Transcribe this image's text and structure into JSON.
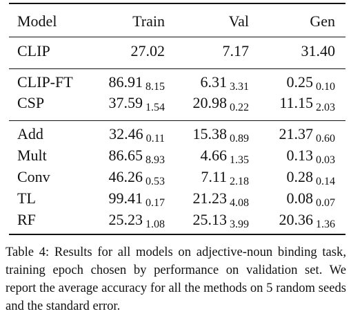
{
  "table": {
    "columns": [
      "Model",
      "Train",
      "Val",
      "Gen"
    ],
    "groups": [
      {
        "rows": [
          {
            "model": "CLIP",
            "train": "27.02",
            "train_se": "",
            "val": "7.17",
            "val_se": "",
            "gen": "31.40",
            "gen_se": ""
          }
        ]
      },
      {
        "rows": [
          {
            "model": "CLIP-FT",
            "train": "86.91",
            "train_se": "8.15",
            "val": "6.31",
            "val_se": "3.31",
            "gen": "0.25",
            "gen_se": "0.10"
          },
          {
            "model": "CSP",
            "train": "37.59",
            "train_se": "1.54",
            "val": "20.98",
            "val_se": "0.22",
            "gen": "11.15",
            "gen_se": "2.03"
          }
        ]
      },
      {
        "rows": [
          {
            "model": "Add",
            "train": "32.46",
            "train_se": "0.11",
            "val": "15.38",
            "val_se": "0.89",
            "gen": "21.37",
            "gen_se": "0.60"
          },
          {
            "model": "Mult",
            "train": "86.65",
            "train_se": "8.93",
            "val": "4.66",
            "val_se": "1.35",
            "gen": "0.13",
            "gen_se": "0.03"
          },
          {
            "model": "Conv",
            "train": "46.26",
            "train_se": "0.53",
            "val": "7.11",
            "val_se": "2.18",
            "gen": "0.28",
            "gen_se": "0.14"
          },
          {
            "model": "TL",
            "train": "99.41",
            "train_se": "0.17",
            "val": "21.23",
            "val_se": "4.08",
            "gen": "0.08",
            "gen_se": "0.07"
          },
          {
            "model": "RF",
            "train": "25.23",
            "train_se": "1.08",
            "val": "25.13",
            "val_se": "3.99",
            "gen": "20.36",
            "gen_se": "1.36"
          }
        ]
      }
    ]
  },
  "caption": "Table 4: Results for all models on adjective-noun binding task, training epoch chosen by performance on validation set. We report the average accuracy for all the methods on 5 random seeds and the standard error."
}
